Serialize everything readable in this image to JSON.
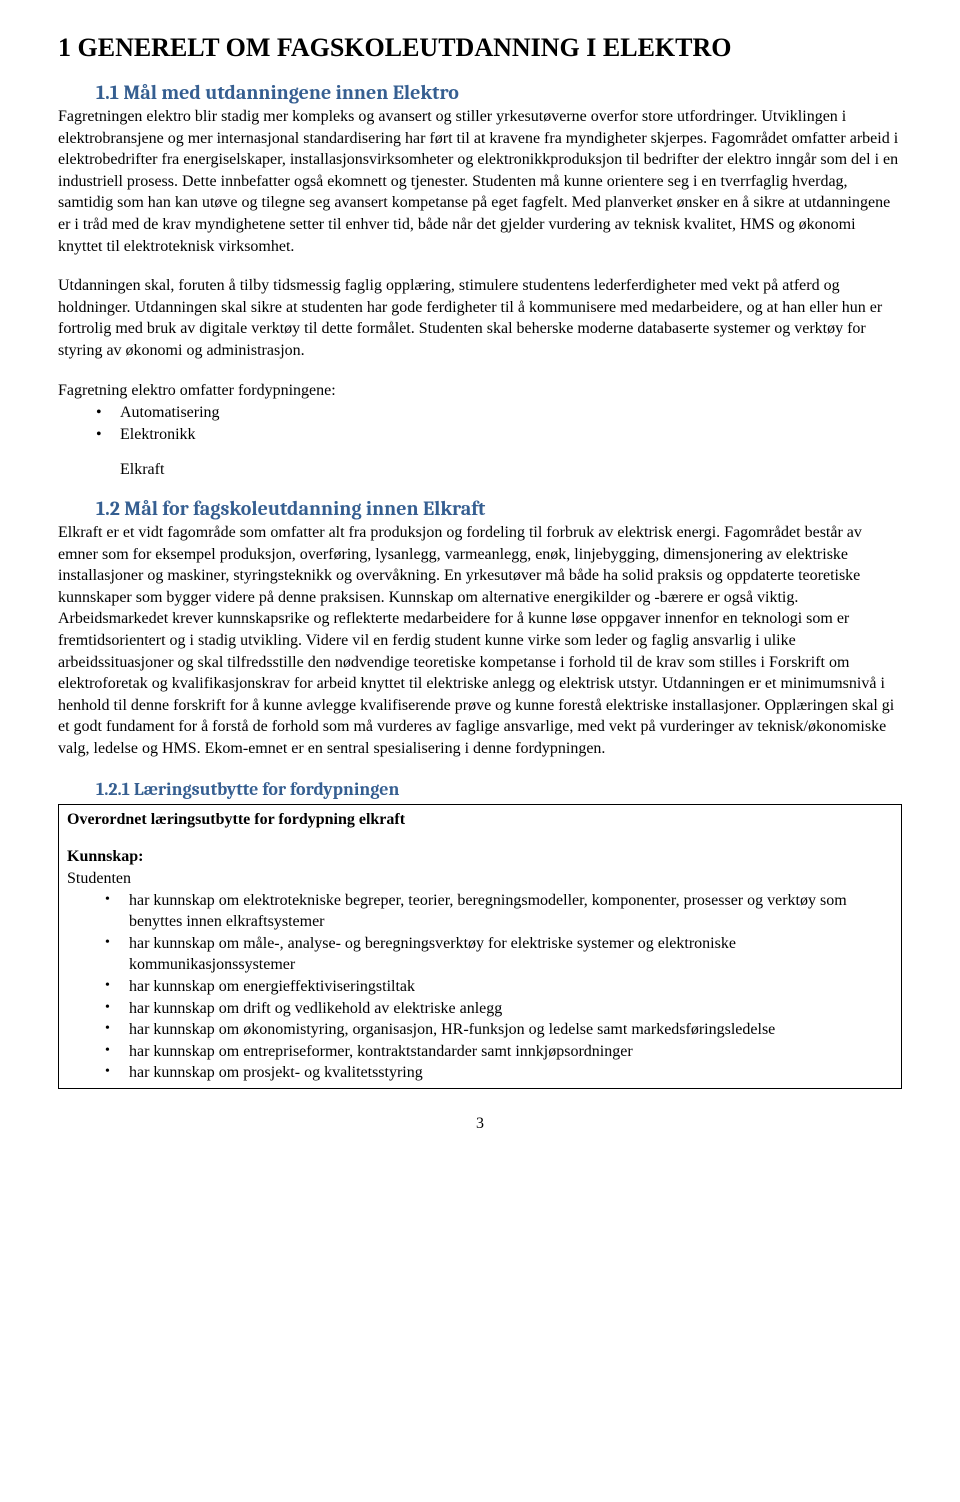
{
  "heading1": "1  GENERELT OM FAGSKOLEUTDANNING I ELEKTRO",
  "section1_1": {
    "heading": "1.1 Mål med utdanningene innen Elektro",
    "para1": "Fagretningen elektro blir stadig mer kompleks og avansert og stiller yrkesutøverne overfor store utfordringer. Utviklingen i elektrobransjene og mer internasjonal standardisering har ført til at kravene fra myndigheter skjerpes. Fagområdet omfatter arbeid i elektrobedrifter fra energiselskaper, installasjonsvirksomheter og elektronikkproduksjon til bedrifter der elektro inngår som del i en industriell prosess. Dette innbefatter også ekomnett og tjenester. Studenten må kunne orientere seg i en tverrfaglig hverdag, samtidig som han kan utøve og tilegne seg avansert kompetanse på eget fagfelt. Med planverket ønsker en å sikre at utdanningene er i tråd med de krav myndighetene setter til enhver tid, både når det gjelder vurdering av teknisk kvalitet, HMS og økonomi knyttet til elektroteknisk virksomhet.",
    "para2": "Utdanningen skal, foruten å tilby tidsmessig faglig opplæring, stimulere studentens lederferdigheter med vekt på atferd og holdninger. Utdanningen skal sikre at studenten har gode ferdigheter til å kommunisere med medarbeidere, og at han eller hun er fortrolig med bruk av digitale verktøy til dette formålet. Studenten skal beherske moderne databaserte systemer og verktøy for styring av økonomi og administrasjon.",
    "intro": "Fagretning elektro omfatter fordypningene:",
    "items": [
      "Automatisering",
      "Elektronikk"
    ],
    "extra": "Elkraft"
  },
  "section1_2": {
    "heading": "1.2  Mål for fagskoleutdanning innen Elkraft",
    "para": "Elkraft er et vidt fagområde som omfatter alt fra produksjon og fordeling til forbruk av elektrisk energi. Fagområdet består av emner som for eksempel produksjon, overføring, lysanlegg, varmeanlegg, enøk, linjebygging, dimensjonering av elektriske installasjoner og maskiner, styringsteknikk og overvåkning. En yrkesutøver må både ha solid praksis og oppdaterte teoretiske kunnskaper som bygger videre på denne praksisen. Kunnskap om alternative energikilder og -bærere er også viktig. Arbeidsmarkedet krever kunnskapsrike og reflekterte medarbeidere for å kunne løse oppgaver innenfor en teknologi som er fremtidsorientert og i stadig utvikling. Videre vil en ferdig student kunne virke som leder og faglig ansvarlig i ulike arbeidssituasjoner og skal tilfredsstille den nødvendige teoretiske kompetanse i forhold til de krav som stilles i Forskrift om elektroforetak og kvalifikasjonskrav for arbeid knyttet til elektriske anlegg og elektrisk utstyr. Utdanningen er et minimumsnivå i henhold til denne forskrift for å kunne avlegge kvalifiserende prøve og kunne forestå elektriske installasjoner. Opplæringen skal gi et godt fundament for å forstå de forhold som må vurderes av faglige ansvarlige, med vekt på vurderinger av teknisk/økonomiske valg, ledelse og HMS. Ekom-emnet er en sentral spesialisering i denne fordypningen."
  },
  "section1_2_1": {
    "heading": "1.2.1  Læringsutbytte for fordypningen",
    "box_title": "Overordnet læringsutbytte for fordypning elkraft",
    "sub_title": "Kunnskap:",
    "sub_label": "Studenten",
    "items": [
      "har kunnskap om elektrotekniske begreper, teorier, beregningsmodeller, komponenter, prosesser og verktøy som benyttes innen elkraftsystemer",
      "har kunnskap om måle-, analyse- og beregningsverktøy for elektriske systemer og elektroniske kommunikasjonssystemer",
      "har kunnskap om energieffektiviseringstiltak",
      "har kunnskap om drift og vedlikehold av elektriske anlegg",
      "har kunnskap om økonomistyring, organisasjon, HR-funksjon og ledelse samt markedsføringsledelse",
      "har kunnskap om entrepriseformer, kontraktstandarder samt innkjøpsordninger",
      "har kunnskap om prosjekt- og kvalitetsstyring"
    ]
  },
  "page_number": "3"
}
